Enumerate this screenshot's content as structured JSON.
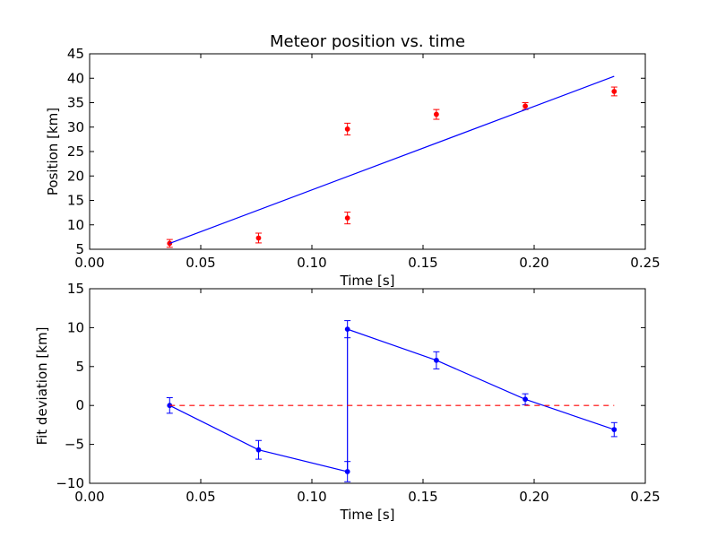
{
  "chart_data": [
    {
      "type": "scatter",
      "title": "Meteor position vs. time",
      "xlabel": "Time [s]",
      "ylabel": "Position [km]",
      "xlim": [
        0.0,
        0.25
      ],
      "ylim": [
        5,
        45
      ],
      "xticks": [
        "0.00",
        "0.05",
        "0.10",
        "0.15",
        "0.20",
        "0.25"
      ],
      "yticks": [
        "5",
        "10",
        "15",
        "20",
        "25",
        "30",
        "35",
        "40",
        "45"
      ],
      "grid": false,
      "series": [
        {
          "kind": "points-with-errorbars",
          "color": "#ff0000",
          "x": [
            0.036,
            0.076,
            0.116,
            0.116,
            0.156,
            0.196,
            0.236
          ],
          "y": [
            6.2,
            7.3,
            29.6,
            11.4,
            32.6,
            34.3,
            37.3
          ],
          "err": [
            0.8,
            1.0,
            1.2,
            1.2,
            1.0,
            0.7,
            0.9
          ]
        },
        {
          "kind": "fit-line",
          "color": "#0000ff",
          "x": [
            0.036,
            0.236
          ],
          "y": [
            6.2,
            40.4
          ]
        }
      ]
    },
    {
      "type": "line",
      "xlabel": "Time [s]",
      "ylabel": "Fit deviation [km]",
      "xlim": [
        0.0,
        0.25
      ],
      "ylim": [
        -10,
        15
      ],
      "xticks": [
        "0.00",
        "0.05",
        "0.10",
        "0.15",
        "0.20",
        "0.25"
      ],
      "yticks": [
        "−10",
        "−5",
        "0",
        "5",
        "10",
        "15"
      ],
      "grid": false,
      "series": [
        {
          "kind": "line-with-errorbars",
          "color": "#0000ff",
          "x": [
            0.036,
            0.076,
            0.116,
            0.116,
            0.156,
            0.196,
            0.236
          ],
          "y": [
            0.0,
            -5.7,
            -8.5,
            9.8,
            5.8,
            0.8,
            -3.1
          ],
          "err": [
            1.0,
            1.2,
            1.3,
            1.1,
            1.1,
            0.7,
            0.9
          ]
        },
        {
          "kind": "reference-line",
          "color": "#ff0000",
          "dashed": true,
          "x": [
            0.036,
            0.236
          ],
          "y": [
            0.0,
            0.0
          ]
        }
      ]
    }
  ]
}
